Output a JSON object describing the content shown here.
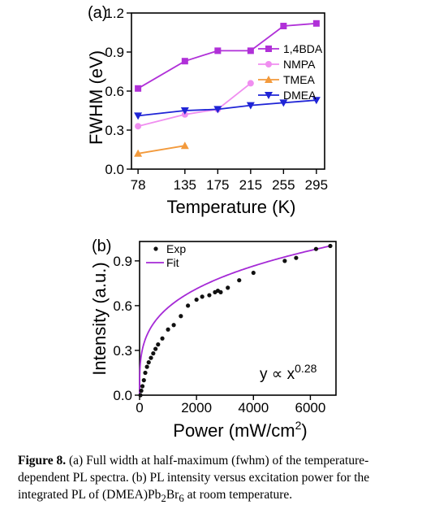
{
  "chart_data": [
    {
      "type": "line",
      "panel_label": "(a)",
      "xlabel": "Temperature (K)",
      "ylabel": "FWHM (eV)",
      "xlim": [
        70,
        305
      ],
      "ylim": [
        0.0,
        1.2
      ],
      "xticks": [
        "78",
        "135",
        "175",
        "215",
        "255",
        "295"
      ],
      "yticks": [
        "0.0",
        "0.3",
        "0.6",
        "0.9",
        "1.2"
      ],
      "legend_position": "right",
      "series": [
        {
          "name": "1,4BDA",
          "color": "#b030d8",
          "marker": "square",
          "x": [
            78,
            135,
            175,
            215,
            255,
            295
          ],
          "y": [
            0.62,
            0.83,
            0.91,
            0.91,
            1.1,
            1.12
          ]
        },
        {
          "name": "NMPA",
          "color": "#f08ef0",
          "marker": "circle",
          "x": [
            78,
            135,
            175,
            215
          ],
          "y": [
            0.33,
            0.42,
            0.46,
            0.66
          ]
        },
        {
          "name": "TMEA",
          "color": "#f39a3c",
          "marker": "triangle-up",
          "x": [
            78,
            135
          ],
          "y": [
            0.12,
            0.18
          ]
        },
        {
          "name": "DMEA",
          "color": "#1f24d6",
          "marker": "triangle-down",
          "x": [
            78,
            135,
            175,
            215,
            255,
            295
          ],
          "y": [
            0.41,
            0.45,
            0.46,
            0.49,
            0.51,
            0.53
          ]
        }
      ]
    },
    {
      "type": "scatter",
      "panel_label": "(b)",
      "xlabel": "Power (mW/cm",
      "xlabel_sup": "2",
      "xlabel_end": ")",
      "ylabel": "Intensity (a.u.)",
      "xlim": [
        0,
        6900
      ],
      "ylim": [
        0.0,
        1.03
      ],
      "xticks": [
        0,
        2000,
        4000,
        6000
      ],
      "yticks": [
        "0.0",
        "0.3",
        "0.6",
        "0.9"
      ],
      "legend_position": "top-left",
      "annotation": "y ∝ x",
      "annotation_sup": "0.28",
      "series": [
        {
          "name": "Exp",
          "color": "#111111",
          "x": [
            30,
            60,
            100,
            150,
            200,
            260,
            320,
            400,
            480,
            560,
            650,
            800,
            1000,
            1200,
            1450,
            1700,
            2000,
            2200,
            2450,
            2650,
            2750,
            2850,
            3100,
            3500,
            4000,
            5100,
            5500,
            6200,
            6700
          ],
          "y": [
            0.0,
            0.03,
            0.06,
            0.1,
            0.15,
            0.19,
            0.22,
            0.25,
            0.28,
            0.31,
            0.34,
            0.38,
            0.44,
            0.47,
            0.53,
            0.6,
            0.64,
            0.66,
            0.67,
            0.69,
            0.7,
            0.69,
            0.72,
            0.77,
            0.82,
            0.9,
            0.92,
            0.98,
            1.0
          ]
        },
        {
          "name": "Fit",
          "color": "#a52ad6",
          "function": "power",
          "exponent": 0.28
        }
      ]
    }
  ],
  "caption": {
    "label": "Figure 8.",
    "text_1": " (a) Full width at half-maximum (fwhm) of the temperature-dependent PL spectra. (b) PL intensity versus excitation power for the integrated PL of (DMEA)Pb",
    "sub_1": "2",
    "text_2": "Br",
    "sub_2": "6",
    "text_3": " at room temperature."
  }
}
